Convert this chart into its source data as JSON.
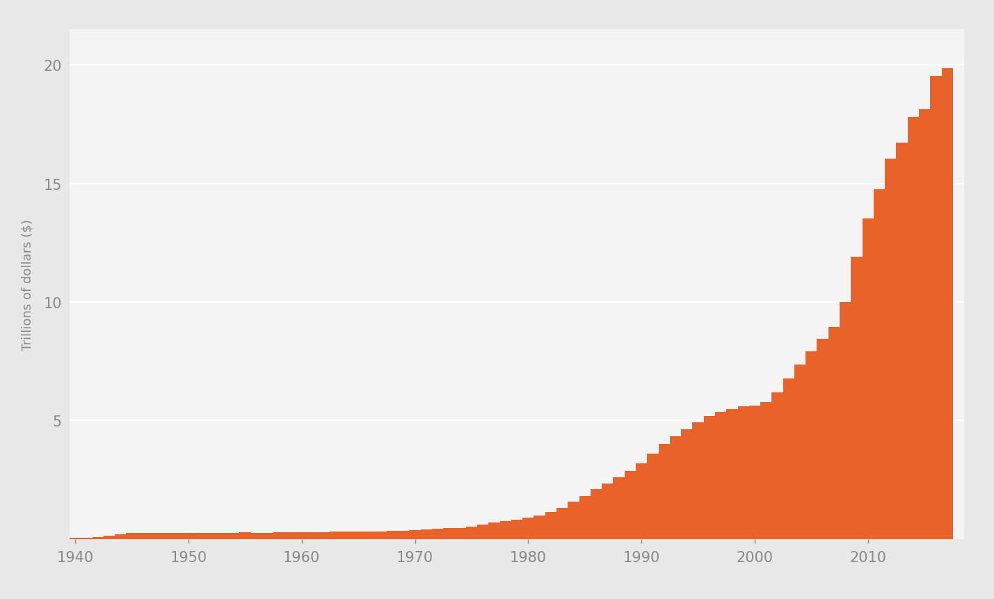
{
  "years": [
    1940,
    1941,
    1942,
    1943,
    1944,
    1945,
    1946,
    1947,
    1948,
    1949,
    1950,
    1951,
    1952,
    1953,
    1954,
    1955,
    1956,
    1957,
    1958,
    1959,
    1960,
    1961,
    1962,
    1963,
    1964,
    1965,
    1966,
    1967,
    1968,
    1969,
    1970,
    1971,
    1972,
    1973,
    1974,
    1975,
    1976,
    1977,
    1978,
    1979,
    1980,
    1981,
    1982,
    1983,
    1984,
    1985,
    1986,
    1987,
    1988,
    1989,
    1990,
    1991,
    1992,
    1993,
    1994,
    1995,
    1996,
    1997,
    1998,
    1999,
    2000,
    2001,
    2002,
    2003,
    2004,
    2005,
    2006,
    2007,
    2008,
    2009,
    2010,
    2011,
    2012,
    2013,
    2014,
    2015,
    2016,
    2017
  ],
  "debt": [
    0.051,
    0.057,
    0.079,
    0.137,
    0.201,
    0.26,
    0.271,
    0.257,
    0.252,
    0.252,
    0.257,
    0.255,
    0.259,
    0.266,
    0.271,
    0.274,
    0.272,
    0.27,
    0.276,
    0.284,
    0.286,
    0.289,
    0.298,
    0.306,
    0.312,
    0.317,
    0.32,
    0.326,
    0.348,
    0.354,
    0.371,
    0.398,
    0.427,
    0.458,
    0.475,
    0.533,
    0.62,
    0.699,
    0.771,
    0.826,
    0.908,
    0.994,
    1.137,
    1.307,
    1.572,
    1.823,
    2.12,
    2.346,
    2.601,
    2.868,
    3.206,
    3.599,
    4.002,
    4.351,
    4.643,
    4.921,
    5.181,
    5.369,
    5.478,
    5.606,
    5.629,
    5.77,
    6.198,
    6.76,
    7.355,
    7.905,
    8.451,
    8.951,
    9.986,
    11.91,
    13.529,
    14.764,
    16.051,
    16.719,
    17.794,
    18.12,
    19.539,
    19.846
  ],
  "bar_color": "#E8622A",
  "background_color": "#E8E8E8",
  "plot_background_color": "#F4F4F4",
  "ylabel": "Trillions of dollars ($)",
  "yticks": [
    5,
    10,
    15,
    20
  ],
  "xticks": [
    1940,
    1950,
    1960,
    1970,
    1980,
    1990,
    2000,
    2010
  ],
  "xlim": [
    1939.5,
    2018.5
  ],
  "ylim": [
    0,
    21.5
  ],
  "grid_color": "#FFFFFF",
  "label_color": "#888888",
  "ylabel_fontsize": 13,
  "tick_fontsize": 15
}
